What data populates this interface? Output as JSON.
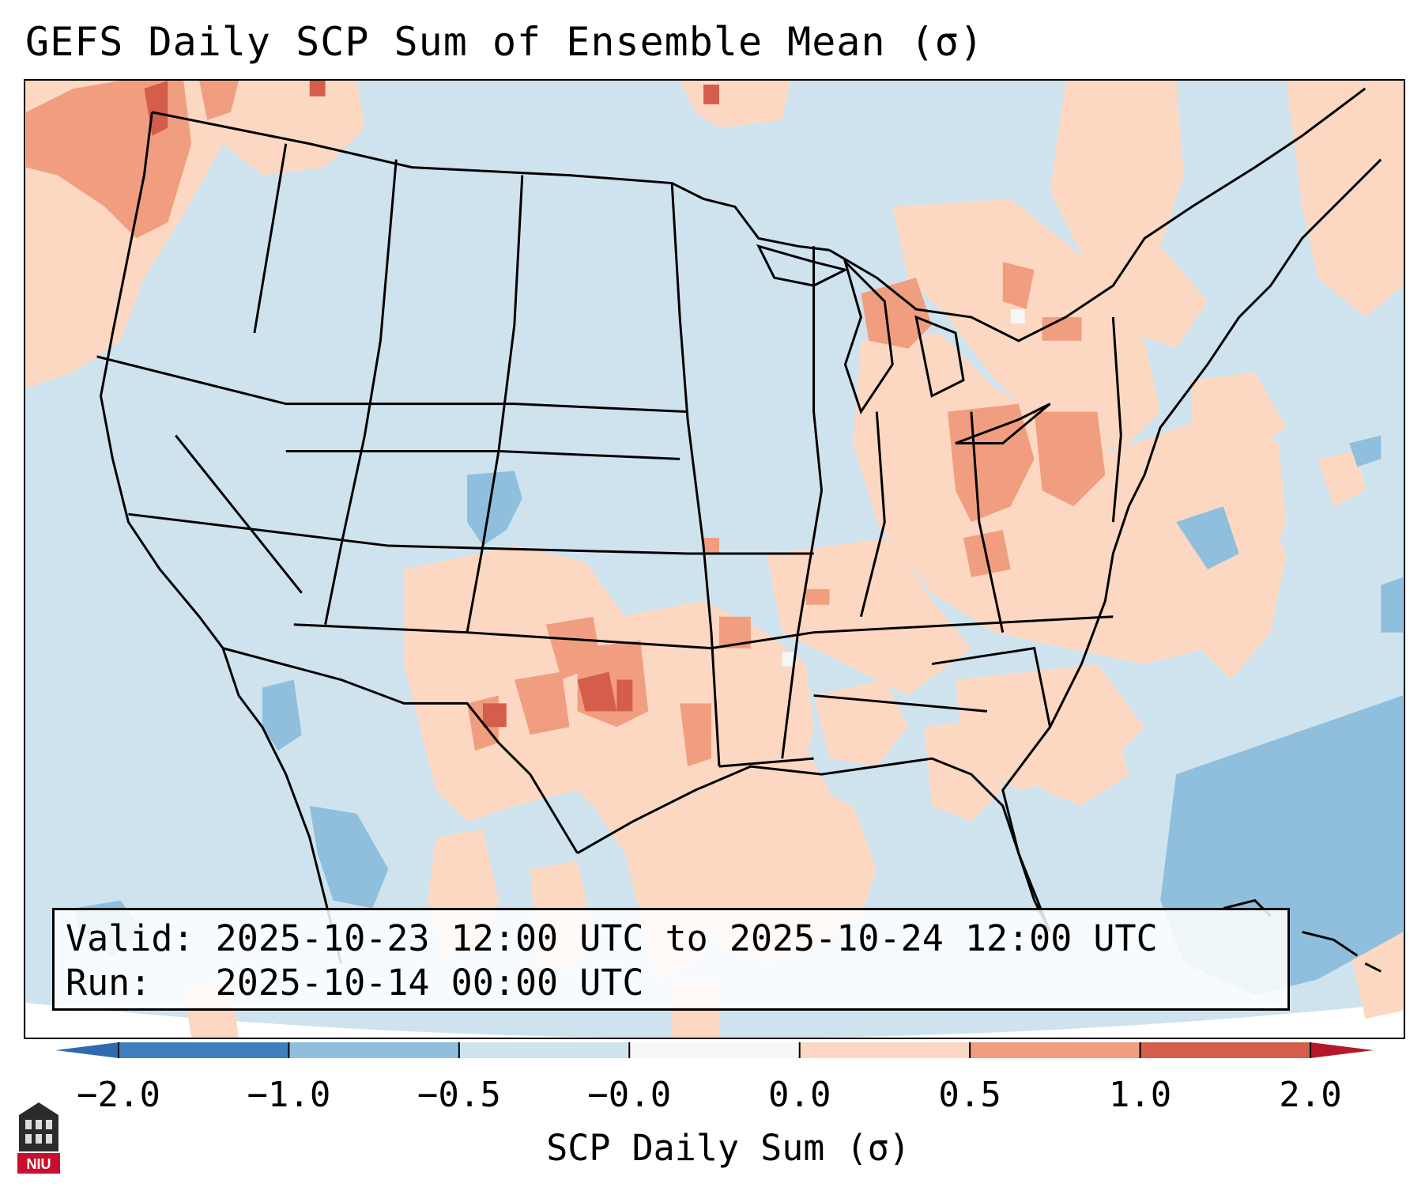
{
  "title": "GEFS Daily SCP Sum of Ensemble Mean (σ)",
  "map": {
    "region": "Contiguous United States",
    "background_anomaly_color": "#cfe3ef",
    "ocean_color": "#cfe3ef",
    "outline_color": "#000000"
  },
  "info_box": {
    "valid_line": "Valid: 2025-10-23 12:00 UTC to 2025-10-24 12:00 UTC",
    "run_line": "Run:   2025-10-14 00:00 UTC"
  },
  "colorbar": {
    "label": "SCP Daily Sum (σ)",
    "ticks": [
      "−2.0",
      "−1.0",
      "−0.5",
      "−0.0",
      "0.0",
      "0.5",
      "1.0",
      "2.0"
    ],
    "colors": [
      "#3f7fbe",
      "#8fbfdd",
      "#cfe3ef",
      "#f7f7f7",
      "#fcd8c2",
      "#f19e80",
      "#d55d4c"
    ],
    "extend_low_color": "#2f6aaf",
    "extend_high_color": "#b4182b"
  },
  "logo": {
    "text": "NIU",
    "icon": "university-logo-icon"
  },
  "anomaly_regions": [
    {
      "name": "pacific-northwest",
      "level": "1.0"
    },
    {
      "name": "southern-plains",
      "level": "1.0"
    },
    {
      "name": "ohio-valley",
      "level": "0.5"
    },
    {
      "name": "great-lakes",
      "level": "0.5"
    },
    {
      "name": "colorado",
      "level": "-1.0"
    },
    {
      "name": "western-atlantic",
      "level": "-1.0"
    }
  ]
}
